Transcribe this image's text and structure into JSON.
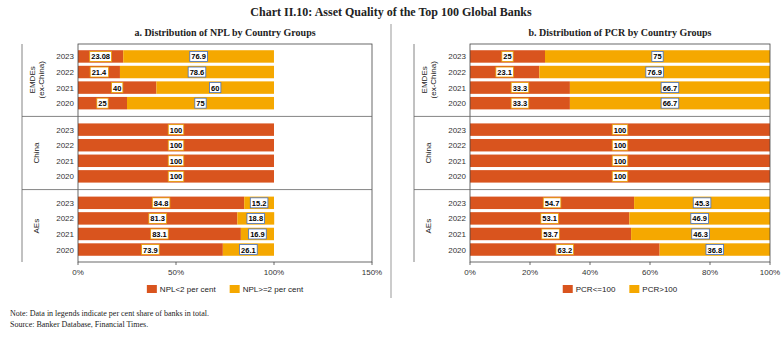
{
  "title": "Chart II.10: Asset Quality of the Top 100 Global Banks",
  "note": "Note: Data in legends indicate per cent share of banks in total.\nSource: Banker Database, Financial Times.",
  "chart_data": [
    {
      "type": "bar",
      "orientation": "horizontal",
      "stacked": true,
      "data_labels": true,
      "legend": "bottom",
      "title": "a. Distribution of NPL by Country Groups",
      "groups": [
        "AEs",
        "China",
        "EMDEs\n(ex-China)"
      ],
      "categories": [
        "2020",
        "2021",
        "2022",
        "2023",
        "2020",
        "2021",
        "2022",
        "2023",
        "2020",
        "2021",
        "2022",
        "2023"
      ],
      "series": [
        {
          "name": "NPL<2 per cent",
          "color": "#d9541e",
          "values": [
            73.9,
            83.1,
            81.3,
            84.8,
            100,
            100,
            100,
            100,
            25.0,
            40.0,
            21.4,
            23.08
          ]
        },
        {
          "name": "NPL>=2 per cent",
          "color": "#f5a800",
          "values": [
            26.1,
            16.9,
            18.8,
            15.2,
            0,
            0,
            0,
            0,
            75.0,
            60.0,
            78.6,
            76.9
          ]
        }
      ],
      "xlim": [
        0,
        150
      ],
      "xticks": [
        {
          "value": 0,
          "label": "0%"
        },
        {
          "value": 50,
          "label": "50%"
        },
        {
          "value": 100,
          "label": "100%"
        },
        {
          "value": 150,
          "label": "150%"
        }
      ]
    },
    {
      "type": "bar",
      "orientation": "horizontal",
      "stacked": true,
      "data_labels": true,
      "legend": "bottom",
      "title": "b. Distribution of PCR by Country Groups",
      "groups": [
        "AEs",
        "China",
        "EMDEs\n(ex-China)"
      ],
      "categories": [
        "2020",
        "2021",
        "2022",
        "2023",
        "2020",
        "2021",
        "2022",
        "2023",
        "2020",
        "2021",
        "2022",
        "2023"
      ],
      "series": [
        {
          "name": "PCR<=100",
          "color": "#d9541e",
          "values": [
            63.2,
            53.7,
            53.1,
            54.7,
            100,
            100,
            100,
            100,
            33.3,
            33.3,
            23.1,
            25.0
          ]
        },
        {
          "name": "PCR>100",
          "color": "#f5a800",
          "values": [
            36.8,
            46.3,
            46.9,
            45.3,
            0,
            0,
            0,
            0,
            66.7,
            66.7,
            76.9,
            75.0
          ]
        }
      ],
      "xlim": [
        0,
        100
      ],
      "xticks": [
        {
          "value": 0,
          "label": "0%"
        },
        {
          "value": 20,
          "label": "20%"
        },
        {
          "value": 40,
          "label": "40%"
        },
        {
          "value": 60,
          "label": "60%"
        },
        {
          "value": 80,
          "label": "80%"
        },
        {
          "value": 100,
          "label": "100%"
        }
      ]
    }
  ]
}
